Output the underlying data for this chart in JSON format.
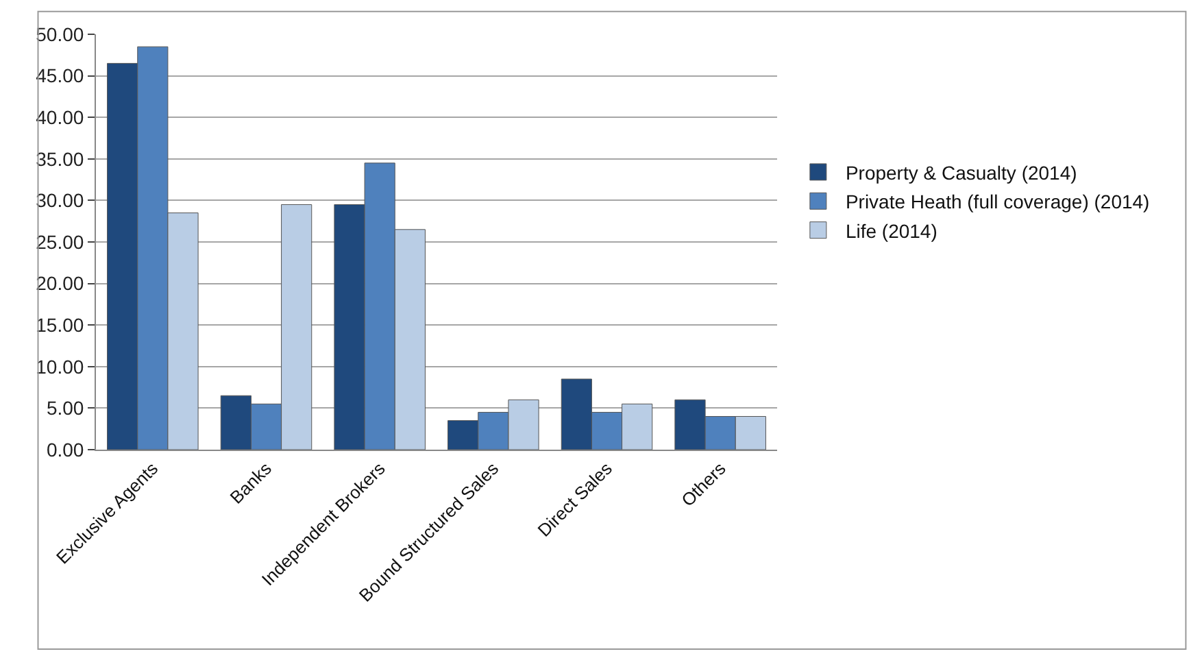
{
  "chart_data": {
    "type": "bar",
    "categories": [
      "Exclusive Agents",
      "Banks",
      "Independent Brokers",
      "Bound Structured Sales",
      "Direct Sales",
      "Others"
    ],
    "series": [
      {
        "name": "Property & Casualty (2014)",
        "color": "#1f497d",
        "values": [
          46.5,
          6.5,
          29.5,
          3.5,
          8.5,
          6
        ]
      },
      {
        "name": "Private Heath (full coverage) (2014)",
        "color": "#4f81bd",
        "values": [
          48.5,
          5.5,
          34.5,
          4.5,
          4.5,
          4
        ]
      },
      {
        "name": "Life (2014)",
        "color": "#b9cde5",
        "values": [
          28.5,
          29.5,
          26.5,
          6,
          5.5,
          4
        ]
      }
    ],
    "ylim": [
      0,
      50
    ],
    "yticks": [
      {
        "value": 0,
        "label": "0.00"
      },
      {
        "value": 5,
        "label": "5.00"
      },
      {
        "value": 10,
        "label": "10.00"
      },
      {
        "value": 15,
        "label": "15.00"
      },
      {
        "value": 20,
        "label": "20.00"
      },
      {
        "value": 25,
        "label": "25.00"
      },
      {
        "value": 30,
        "label": "30.00"
      },
      {
        "value": 35,
        "label": "35.00"
      },
      {
        "value": 40,
        "label": "40.00"
      },
      {
        "value": 45,
        "label": "45.00"
      },
      {
        "value": 50,
        "label": "50.00"
      }
    ],
    "grid": "y",
    "legend": "right"
  }
}
